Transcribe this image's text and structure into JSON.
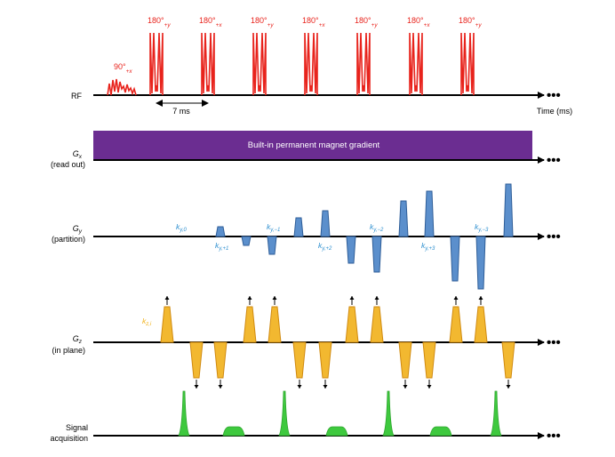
{
  "rows": {
    "rf": {
      "label": "RF",
      "axis_end": "Time (ms)"
    },
    "gx": {
      "label_main": "G",
      "label_sub": "x",
      "label_desc": "(read out)",
      "banner": "Built-in permanent magnet gradient"
    },
    "gy": {
      "label_main": "G",
      "label_sub": "y",
      "label_desc": "(partition)"
    },
    "gz": {
      "label_main": "G",
      "label_sub": "z",
      "label_desc": "(in plane)"
    },
    "sig": {
      "label_line1": "Signal",
      "label_line2": "acquisition"
    }
  },
  "rf_pulses": {
    "excitation": {
      "angle": "90°",
      "phase": "+x"
    },
    "refocusing": [
      {
        "angle": "180°",
        "phase": "+y"
      },
      {
        "angle": "180°",
        "phase": "+x"
      },
      {
        "angle": "180°",
        "phase": "+y"
      },
      {
        "angle": "180°",
        "phase": "+x"
      },
      {
        "angle": "180°",
        "phase": "+y"
      },
      {
        "angle": "180°",
        "phase": "+x"
      },
      {
        "angle": "180°",
        "phase": "+y"
      }
    ]
  },
  "echo_spacing": "7 ms",
  "ky_labels": [
    {
      "k": "k",
      "sub": "y,0"
    },
    {
      "k": "k",
      "sub": "y,+1"
    },
    {
      "k": "k",
      "sub": "y,−1"
    },
    {
      "k": "k",
      "sub": "y,+2"
    },
    {
      "k": "k",
      "sub": "y,−2"
    },
    {
      "k": "k",
      "sub": "y,+3"
    },
    {
      "k": "k",
      "sub": "y,−3"
    }
  ],
  "kz_label": {
    "k": "k",
    "sub": "z,i"
  },
  "colors": {
    "rf": "#e8231c",
    "gx": "#6b2d91",
    "gy_fill": "#5b8fcc",
    "gy_stroke": "#2f5e98",
    "gz_fill": "#f2b830",
    "gz_stroke": "#d08a10",
    "signal": "#3ec93e",
    "ky_text": "#2d8fcf",
    "kz_text": "#f0b21a"
  }
}
